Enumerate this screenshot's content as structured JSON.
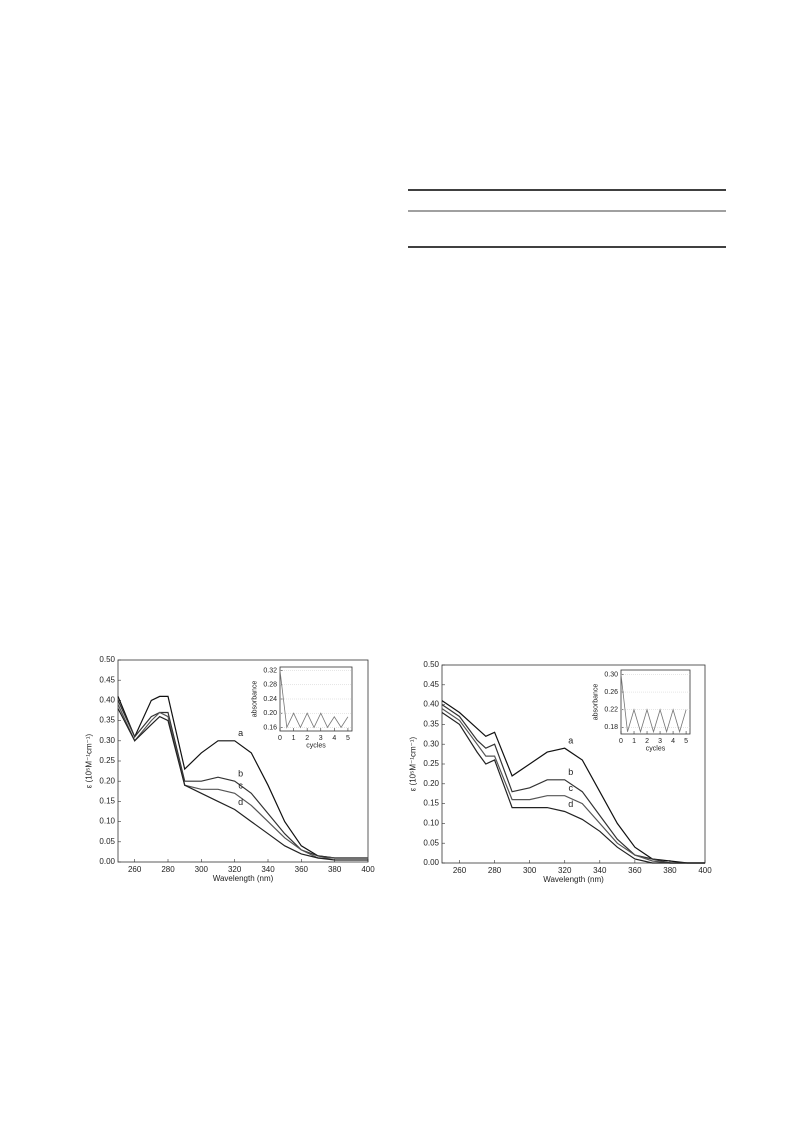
{
  "chart_data": [
    {
      "type": "line",
      "xlabel": "Wavelength (nm)",
      "ylabel": "ε (10⁵M⁻¹cm⁻¹)",
      "xlim": [
        250,
        400
      ],
      "xticks": [
        260,
        280,
        300,
        320,
        340,
        360,
        380,
        400
      ],
      "ylim": [
        0,
        0.5
      ],
      "yticks": [
        {
          "value": 0,
          "label": "0.00"
        },
        {
          "value": 0.05,
          "label": "0.05"
        },
        {
          "value": 0.1,
          "label": "0.10"
        },
        {
          "value": 0.15,
          "label": "0.15"
        },
        {
          "value": 0.2,
          "label": "0.20"
        },
        {
          "value": 0.25,
          "label": "0.25"
        },
        {
          "value": 0.3,
          "label": "0.30"
        },
        {
          "value": 0.35,
          "label": "0.35"
        },
        {
          "value": 0.4,
          "label": "0.40"
        },
        {
          "value": 0.45,
          "label": "0.45"
        },
        {
          "value": 0.5,
          "label": "0.50"
        }
      ],
      "x": [
        250,
        260,
        270,
        275,
        280,
        290,
        300,
        310,
        320,
        330,
        340,
        350,
        360,
        370,
        380,
        390,
        400
      ],
      "series": [
        {
          "name": "a",
          "color": "#111111",
          "values": [
            0.41,
            0.31,
            0.4,
            0.41,
            0.41,
            0.23,
            0.27,
            0.3,
            0.3,
            0.27,
            0.19,
            0.1,
            0.04,
            0.015,
            0.01,
            0.01,
            0.01
          ]
        },
        {
          "name": "b",
          "color": "#333333",
          "values": [
            0.4,
            0.31,
            0.36,
            0.37,
            0.37,
            0.2,
            0.2,
            0.21,
            0.2,
            0.17,
            0.12,
            0.07,
            0.03,
            0.015,
            0.01,
            0.01,
            0.01
          ]
        },
        {
          "name": "c",
          "color": "#555555",
          "values": [
            0.39,
            0.3,
            0.35,
            0.37,
            0.36,
            0.19,
            0.18,
            0.18,
            0.17,
            0.14,
            0.1,
            0.06,
            0.03,
            0.01,
            0.01,
            0.01,
            0.01
          ]
        },
        {
          "name": "d",
          "color": "#222222",
          "values": [
            0.38,
            0.3,
            0.34,
            0.36,
            0.35,
            0.19,
            0.17,
            0.15,
            0.13,
            0.1,
            0.07,
            0.04,
            0.02,
            0.01,
            0.005,
            0.005,
            0.005
          ]
        }
      ],
      "inset": {
        "type": "line",
        "xlabel": "cycles",
        "ylabel": "absorbance",
        "grid": true,
        "xlim": [
          0,
          5.3
        ],
        "xticks": [
          0,
          1,
          2,
          3,
          4,
          5
        ],
        "ylim": [
          0.15,
          0.33
        ],
        "yticks": [
          0.16,
          {
            "value": 0.2,
            "label": "0.20"
          },
          0.24,
          0.28,
          0.32
        ],
        "x": [
          0,
          0.5,
          1,
          1.5,
          2,
          2.5,
          3,
          3.5,
          4,
          4.5,
          5
        ],
        "values": [
          0.32,
          0.16,
          0.2,
          0.16,
          0.2,
          0.16,
          0.2,
          0.16,
          0.19,
          0.16,
          0.19
        ],
        "color": "#777777"
      }
    },
    {
      "type": "line",
      "xlabel": "Wavelength (nm)",
      "ylabel": "ε (10⁵M⁻¹cm⁻¹)",
      "xlim": [
        250,
        400
      ],
      "xticks": [
        260,
        280,
        300,
        320,
        340,
        360,
        380,
        400
      ],
      "ylim": [
        0,
        0.5
      ],
      "yticks": [
        {
          "value": 0,
          "label": "0.00"
        },
        {
          "value": 0.05,
          "label": "0.05"
        },
        {
          "value": 0.1,
          "label": "0.10"
        },
        {
          "value": 0.15,
          "label": "0.15"
        },
        {
          "value": 0.2,
          "label": "0.20"
        },
        {
          "value": 0.25,
          "label": "0.25"
        },
        {
          "value": 0.3,
          "label": "0.30"
        },
        {
          "value": 0.35,
          "label": "0.35"
        },
        {
          "value": 0.4,
          "label": "0.40"
        },
        {
          "value": 0.45,
          "label": "0.45"
        },
        {
          "value": 0.5,
          "label": "0.50"
        }
      ],
      "x": [
        250,
        260,
        270,
        275,
        280,
        290,
        300,
        310,
        320,
        330,
        340,
        350,
        360,
        370,
        380,
        390,
        400
      ],
      "series": [
        {
          "name": "a",
          "color": "#111111",
          "values": [
            0.41,
            0.38,
            0.34,
            0.32,
            0.33,
            0.22,
            0.25,
            0.28,
            0.29,
            0.26,
            0.18,
            0.1,
            0.04,
            0.01,
            0.005,
            0,
            0
          ]
        },
        {
          "name": "b",
          "color": "#333333",
          "values": [
            0.4,
            0.37,
            0.31,
            0.29,
            0.3,
            0.18,
            0.19,
            0.21,
            0.21,
            0.18,
            0.12,
            0.06,
            0.02,
            0.01,
            0,
            0,
            0
          ]
        },
        {
          "name": "c",
          "color": "#555555",
          "values": [
            0.39,
            0.36,
            0.3,
            0.27,
            0.27,
            0.16,
            0.16,
            0.17,
            0.17,
            0.15,
            0.1,
            0.05,
            0.02,
            0.005,
            0,
            0,
            0
          ]
        },
        {
          "name": "d",
          "color": "#222222",
          "values": [
            0.38,
            0.35,
            0.28,
            0.25,
            0.26,
            0.14,
            0.14,
            0.14,
            0.13,
            0.11,
            0.08,
            0.04,
            0.01,
            0,
            0,
            0,
            0
          ]
        }
      ],
      "inset": {
        "type": "line",
        "xlabel": "cycles",
        "ylabel": "absorbance",
        "grid": true,
        "xlim": [
          0,
          5.3
        ],
        "xticks": [
          0,
          1,
          2,
          3,
          4,
          5
        ],
        "ylim": [
          0.165,
          0.31
        ],
        "yticks": [
          0.18,
          0.22,
          0.26,
          {
            "value": 0.3,
            "label": "0.30"
          }
        ],
        "x": [
          0,
          0.5,
          1,
          1.5,
          2,
          2.5,
          3,
          3.5,
          4,
          4.5,
          5
        ],
        "values": [
          0.3,
          0.17,
          0.22,
          0.17,
          0.22,
          0.17,
          0.22,
          0.17,
          0.22,
          0.17,
          0.22
        ],
        "color": "#777777"
      }
    }
  ]
}
